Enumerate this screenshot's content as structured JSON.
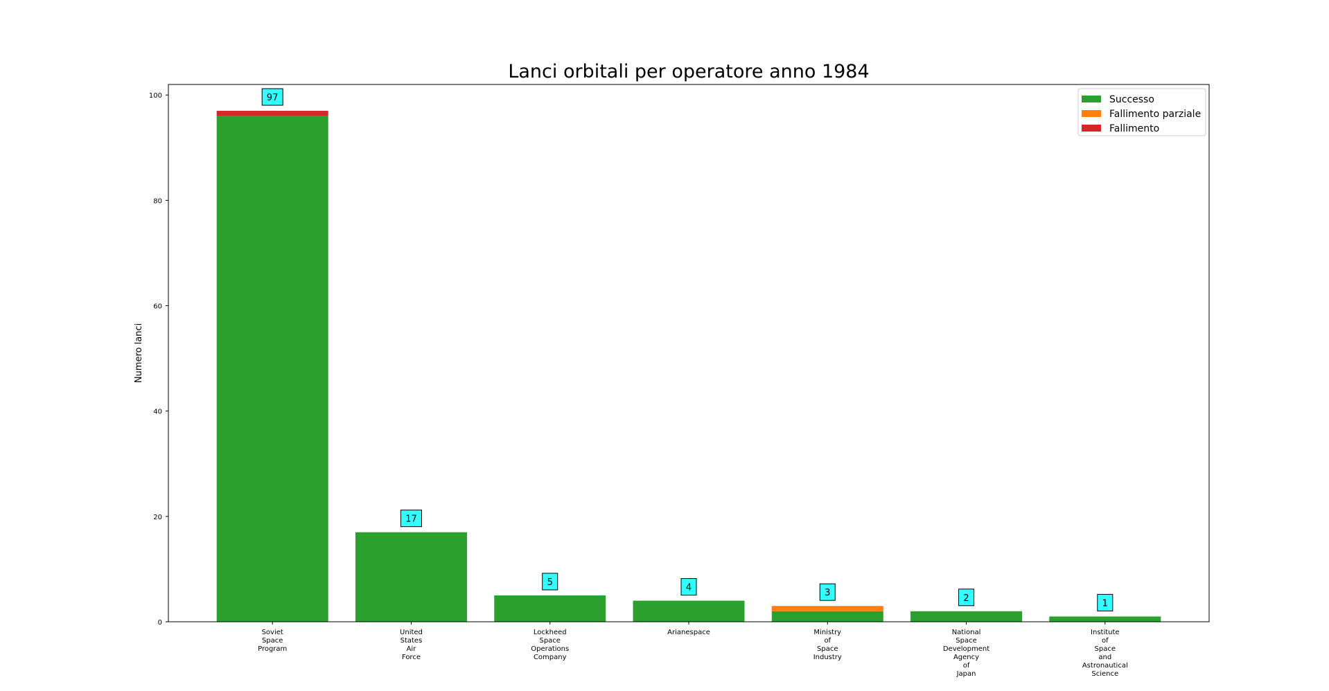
{
  "chart_data": {
    "type": "bar",
    "stacked": true,
    "title": "Lanci orbitali per operatore anno 1984",
    "xlabel": "",
    "ylabel": "Numero lanci",
    "ylim": [
      0,
      102
    ],
    "yticks": [
      0,
      20,
      40,
      60,
      80,
      100
    ],
    "grid": false,
    "legend_position": "top-right",
    "categories": [
      "Soviet Space Program",
      "United States Air Force",
      "Lockheed Space Operations Company",
      "Arianespace",
      "Ministry of Space Industry",
      "National Space Development Agency of Japan",
      "Institute of Space and Astronautical Science"
    ],
    "series": [
      {
        "name": "Successo",
        "color": "#2ca02c",
        "values": [
          96,
          17,
          5,
          4,
          2,
          2,
          1
        ]
      },
      {
        "name": "Fallimento parziale",
        "color": "#ff7f0e",
        "values": [
          0,
          0,
          0,
          0,
          1,
          0,
          0
        ]
      },
      {
        "name": "Fallimento",
        "color": "#d62728",
        "values": [
          1,
          0,
          0,
          0,
          0,
          0,
          0
        ]
      }
    ],
    "totals": [
      97,
      17,
      5,
      4,
      3,
      2,
      1
    ],
    "data_label_color": "#33ffff"
  }
}
